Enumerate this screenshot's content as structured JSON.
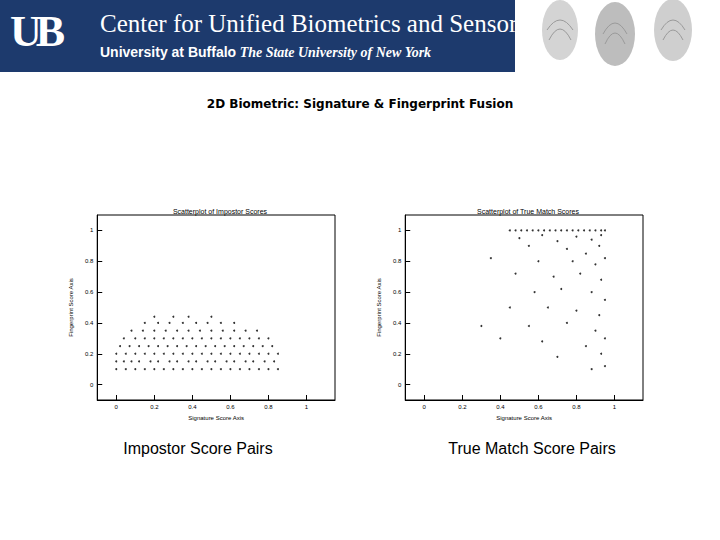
{
  "header": {
    "logo": "UB",
    "name": "Center for Unified Biometrics and Sensors",
    "university": "University at Buffalo",
    "subtitle": "The State University of New York"
  },
  "slide_title": "2D Biometric: Signature & Fingerprint Fusion",
  "captions": [
    "Impostor Score Pairs",
    "True Match Score Pairs"
  ],
  "chart_data": [
    {
      "type": "scatter",
      "title": "Scatterplot of Impostor Scores",
      "x_label": "Signature Score Axis",
      "y_label": "Fingerprint Score Axis",
      "color": "#000000",
      "marker": "point",
      "grid": false,
      "xlim": [
        -0.1,
        1.15
      ],
      "xticks": [
        0,
        0.2,
        0.4,
        0.6,
        0.8,
        1
      ],
      "ylim": [
        -0.1,
        1.1
      ],
      "yticks": [
        0,
        0.2,
        0.4,
        0.6,
        0.8,
        1
      ],
      "x": [
        0,
        0.05,
        0.1,
        0.15,
        0.2,
        0.25,
        0.3,
        0.35,
        0.4,
        0.45,
        0.5,
        0.55,
        0.6,
        0.65,
        0.7,
        0.75,
        0.8,
        0.85,
        0,
        0.04,
        0.08,
        0.12,
        0.18,
        0.22,
        0.28,
        0.32,
        0.38,
        0.42,
        0.48,
        0.52,
        0.58,
        0.62,
        0.68,
        0.72,
        0.78,
        0.83,
        0,
        0.05,
        0.1,
        0.15,
        0.2,
        0.25,
        0.3,
        0.35,
        0.4,
        0.45,
        0.5,
        0.55,
        0.6,
        0.65,
        0.7,
        0.75,
        0.8,
        0.85,
        0.02,
        0.07,
        0.12,
        0.17,
        0.22,
        0.27,
        0.32,
        0.37,
        0.42,
        0.47,
        0.52,
        0.57,
        0.62,
        0.67,
        0.72,
        0.77,
        0.82,
        0.04,
        0.1,
        0.15,
        0.2,
        0.25,
        0.3,
        0.35,
        0.4,
        0.45,
        0.5,
        0.55,
        0.6,
        0.65,
        0.7,
        0.75,
        0.8,
        0.08,
        0.14,
        0.2,
        0.26,
        0.32,
        0.38,
        0.44,
        0.5,
        0.56,
        0.62,
        0.68,
        0.74,
        0.15,
        0.22,
        0.28,
        0.35,
        0.42,
        0.48,
        0.55,
        0.62,
        0.2,
        0.3,
        0.38,
        0.5
      ],
      "values": [
        0.1,
        0.1,
        0.1,
        0.1,
        0.1,
        0.1,
        0.1,
        0.1,
        0.1,
        0.1,
        0.1,
        0.1,
        0.1,
        0.1,
        0.1,
        0.1,
        0.1,
        0.1,
        0.15,
        0.15,
        0.15,
        0.15,
        0.15,
        0.15,
        0.15,
        0.15,
        0.15,
        0.15,
        0.15,
        0.15,
        0.15,
        0.15,
        0.15,
        0.15,
        0.15,
        0.15,
        0.2,
        0.2,
        0.2,
        0.2,
        0.2,
        0.2,
        0.2,
        0.2,
        0.2,
        0.2,
        0.2,
        0.2,
        0.2,
        0.2,
        0.2,
        0.2,
        0.2,
        0.2,
        0.25,
        0.25,
        0.25,
        0.25,
        0.25,
        0.25,
        0.25,
        0.25,
        0.25,
        0.25,
        0.25,
        0.25,
        0.25,
        0.25,
        0.25,
        0.25,
        0.25,
        0.3,
        0.3,
        0.3,
        0.3,
        0.3,
        0.3,
        0.3,
        0.3,
        0.3,
        0.3,
        0.3,
        0.3,
        0.3,
        0.3,
        0.3,
        0.3,
        0.35,
        0.35,
        0.35,
        0.35,
        0.35,
        0.35,
        0.35,
        0.35,
        0.35,
        0.35,
        0.35,
        0.35,
        0.4,
        0.4,
        0.4,
        0.4,
        0.4,
        0.4,
        0.4,
        0.4,
        0.44,
        0.44,
        0.44,
        0.44
      ]
    },
    {
      "type": "scatter",
      "title": "Scatterplot of True Match Scores",
      "x_label": "Signature Score Axis",
      "y_label": "Fingerprint Score Axis",
      "color": "#000000",
      "marker": "point",
      "grid": false,
      "xlim": [
        -0.1,
        1.15
      ],
      "xticks": [
        0,
        0.2,
        0.4,
        0.6,
        0.8,
        1
      ],
      "ylim": [
        -0.1,
        1.1
      ],
      "yticks": [
        0,
        0.2,
        0.4,
        0.6,
        0.8,
        1
      ],
      "x": [
        0.45,
        0.48,
        0.51,
        0.54,
        0.57,
        0.6,
        0.63,
        0.66,
        0.69,
        0.72,
        0.75,
        0.78,
        0.81,
        0.84,
        0.87,
        0.9,
        0.93,
        0.95,
        0.5,
        0.62,
        0.7,
        0.8,
        0.88,
        0.93,
        0.55,
        0.75,
        0.85,
        0.92,
        0.35,
        0.6,
        0.78,
        0.9,
        0.95,
        0.48,
        0.68,
        0.82,
        0.93,
        0.58,
        0.72,
        0.88,
        0.95,
        0.45,
        0.65,
        0.8,
        0.92,
        0.3,
        0.55,
        0.75,
        0.9,
        0.95,
        0.62,
        0.85,
        0.93,
        0.7,
        0.95,
        0.88,
        0.4
      ],
      "values": [
        1,
        1,
        1,
        1,
        1,
        1,
        1,
        1,
        1,
        1,
        1,
        1,
        1,
        1,
        1,
        1,
        1,
        1,
        0.95,
        0.97,
        0.93,
        0.96,
        0.94,
        0.97,
        0.9,
        0.88,
        0.85,
        0.9,
        0.82,
        0.8,
        0.8,
        0.78,
        0.82,
        0.72,
        0.7,
        0.72,
        0.68,
        0.6,
        0.62,
        0.6,
        0.55,
        0.5,
        0.5,
        0.48,
        0.45,
        0.38,
        0.38,
        0.4,
        0.35,
        0.3,
        0.28,
        0.25,
        0.2,
        0.18,
        0.12,
        0.1,
        0.3
      ]
    }
  ]
}
